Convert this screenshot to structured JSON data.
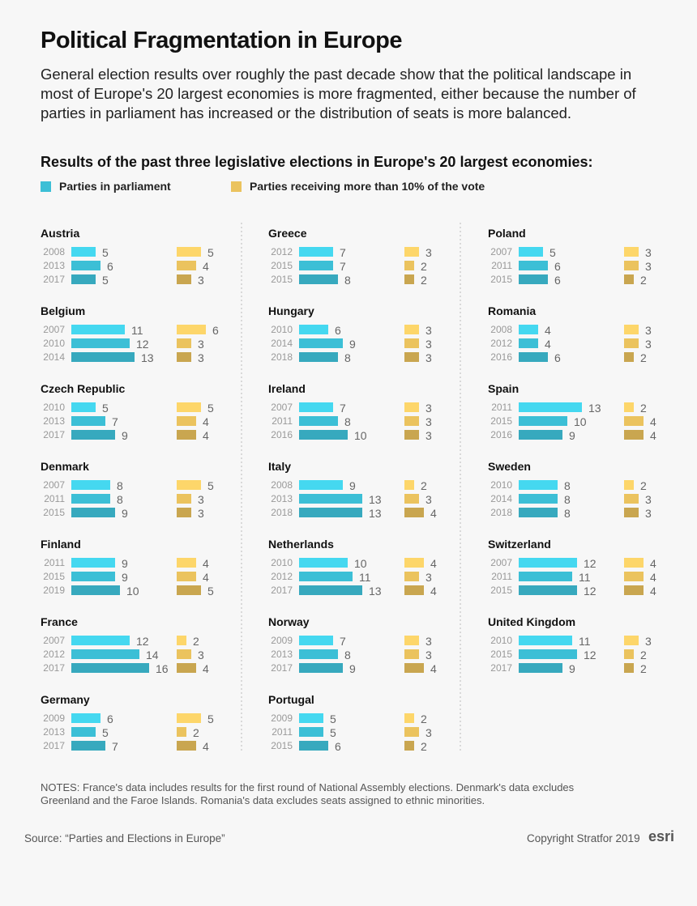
{
  "title": "Political Fragmentation in Europe",
  "subtitle": "General election results over roughly the past decade show that the political landscape in most of Europe's 20 largest economies is more fragmented, either because the number of parties in parliament has increased or the distribution of seats is more balanced.",
  "notes": "NOTES: France's data includes results for the first round of National Assembly elections. Denmark's data excludes Greenland and the Faroe Islands. Romania's data excludes seats assigned to ethnic minorities.",
  "source": "Source: “Parties and Elections in Europe”",
  "copyright": "Copyright Stratfor 2019",
  "logo": "esri",
  "colors": {
    "parliament": [
      "#45d8f0",
      "#3cbfd6",
      "#37a9be"
    ],
    "over10": [
      "#fdd66a",
      "#ebc35e",
      "#c9a650"
    ],
    "year": "#999999",
    "value": "#666666"
  },
  "chart_data": {
    "type": "bar",
    "title": "Results of the past three legislative elections in Europe's 20 largest economies:",
    "legend": [
      {
        "name": "Parties in parliament",
        "color": "#3cbfd6"
      },
      {
        "name": "Parties receiving more than 10% of the vote",
        "color": "#ebc35e"
      }
    ],
    "legend_position": "top-left",
    "countries": [
      {
        "name": "Austria",
        "years": [
          "2008",
          "2013",
          "2017"
        ],
        "parliament": [
          5,
          6,
          5
        ],
        "over10": [
          5,
          4,
          3
        ]
      },
      {
        "name": "Belgium",
        "years": [
          "2007",
          "2010",
          "2014"
        ],
        "parliament": [
          11,
          12,
          13
        ],
        "over10": [
          6,
          3,
          3
        ]
      },
      {
        "name": "Czech Republic",
        "years": [
          "2010",
          "2013",
          "2017"
        ],
        "parliament": [
          5,
          7,
          9
        ],
        "over10": [
          5,
          4,
          4
        ]
      },
      {
        "name": "Denmark",
        "years": [
          "2007",
          "2011",
          "2015"
        ],
        "parliament": [
          8,
          8,
          9
        ],
        "over10": [
          5,
          3,
          3
        ]
      },
      {
        "name": "Finland",
        "years": [
          "2011",
          "2015",
          "2019"
        ],
        "parliament": [
          9,
          9,
          10
        ],
        "over10": [
          4,
          4,
          5
        ]
      },
      {
        "name": "France",
        "years": [
          "2007",
          "2012",
          "2017"
        ],
        "parliament": [
          12,
          14,
          16
        ],
        "over10": [
          2,
          3,
          4
        ]
      },
      {
        "name": "Germany",
        "years": [
          "2009",
          "2013",
          "2017"
        ],
        "parliament": [
          6,
          5,
          7
        ],
        "over10": [
          5,
          2,
          4
        ]
      },
      {
        "name": "Greece",
        "years": [
          "2012",
          "2015",
          "2015"
        ],
        "parliament": [
          7,
          7,
          8
        ],
        "over10": [
          3,
          2,
          2
        ]
      },
      {
        "name": "Hungary",
        "years": [
          "2010",
          "2014",
          "2018"
        ],
        "parliament": [
          6,
          9,
          8
        ],
        "over10": [
          3,
          3,
          3
        ]
      },
      {
        "name": "Ireland",
        "years": [
          "2007",
          "2011",
          "2016"
        ],
        "parliament": [
          7,
          8,
          10
        ],
        "over10": [
          3,
          3,
          3
        ]
      },
      {
        "name": "Italy",
        "years": [
          "2008",
          "2013",
          "2018"
        ],
        "parliament": [
          9,
          13,
          13
        ],
        "over10": [
          2,
          3,
          4
        ]
      },
      {
        "name": "Netherlands",
        "years": [
          "2010",
          "2012",
          "2017"
        ],
        "parliament": [
          10,
          11,
          13
        ],
        "over10": [
          4,
          3,
          4
        ]
      },
      {
        "name": "Norway",
        "years": [
          "2009",
          "2013",
          "2017"
        ],
        "parliament": [
          7,
          8,
          9
        ],
        "over10": [
          3,
          3,
          4
        ]
      },
      {
        "name": "Portugal",
        "years": [
          "2009",
          "2011",
          "2015"
        ],
        "parliament": [
          5,
          5,
          6
        ],
        "over10": [
          2,
          3,
          2
        ]
      },
      {
        "name": "Poland",
        "years": [
          "2007",
          "2011",
          "2015"
        ],
        "parliament": [
          5,
          6,
          6
        ],
        "over10": [
          3,
          3,
          2
        ]
      },
      {
        "name": "Romania",
        "years": [
          "2008",
          "2012",
          "2016"
        ],
        "parliament": [
          4,
          4,
          6
        ],
        "over10": [
          3,
          3,
          2
        ]
      },
      {
        "name": "Spain",
        "years": [
          "2011",
          "2015",
          "2016"
        ],
        "parliament": [
          13,
          10,
          9
        ],
        "over10": [
          2,
          4,
          4
        ]
      },
      {
        "name": "Sweden",
        "years": [
          "2010",
          "2014",
          "2018"
        ],
        "parliament": [
          8,
          8,
          8
        ],
        "over10": [
          2,
          3,
          3
        ]
      },
      {
        "name": "Switzerland",
        "years": [
          "2007",
          "2011",
          "2015"
        ],
        "parliament": [
          12,
          11,
          12
        ],
        "over10": [
          4,
          4,
          4
        ]
      },
      {
        "name": "United Kingdom",
        "years": [
          "2010",
          "2015",
          "2017"
        ],
        "parliament": [
          11,
          12,
          9
        ],
        "over10": [
          3,
          2,
          2
        ]
      }
    ]
  }
}
